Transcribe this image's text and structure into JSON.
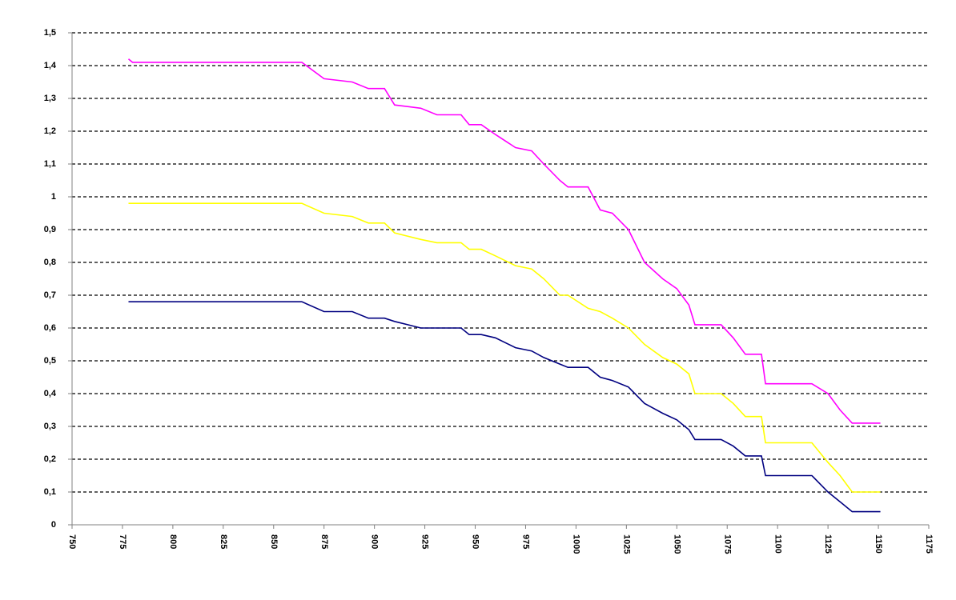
{
  "chart_data": {
    "type": "line",
    "x": [
      778,
      780,
      864,
      875,
      889,
      897,
      905,
      910,
      923,
      931,
      943,
      947,
      953,
      960,
      970,
      978,
      984,
      992,
      996,
      1006,
      1012,
      1018,
      1026,
      1034,
      1043,
      1050,
      1056,
      1059,
      1072,
      1078,
      1084,
      1092,
      1094,
      1105,
      1117,
      1125,
      1131,
      1137,
      1151
    ],
    "series": [
      {
        "color": "#ff00ff",
        "values": [
          1.42,
          1.41,
          1.41,
          1.36,
          1.35,
          1.33,
          1.33,
          1.28,
          1.27,
          1.25,
          1.25,
          1.22,
          1.22,
          1.19,
          1.15,
          1.14,
          1.1,
          1.05,
          1.03,
          1.03,
          0.96,
          0.95,
          0.9,
          0.8,
          0.75,
          0.72,
          0.67,
          0.61,
          0.61,
          0.57,
          0.52,
          0.52,
          0.43,
          0.43,
          0.43,
          0.4,
          0.35,
          0.31,
          0.31
        ]
      },
      {
        "color": "#ffff00",
        "values": [
          0.98,
          0.98,
          0.98,
          0.95,
          0.94,
          0.92,
          0.92,
          0.89,
          0.87,
          0.86,
          0.86,
          0.84,
          0.84,
          0.82,
          0.79,
          0.78,
          0.75,
          0.7,
          0.7,
          0.66,
          0.65,
          0.63,
          0.6,
          0.55,
          0.51,
          0.49,
          0.46,
          0.4,
          0.4,
          0.37,
          0.33,
          0.33,
          0.25,
          0.25,
          0.25,
          0.19,
          0.15,
          0.1,
          0.1
        ]
      },
      {
        "color": "#000080",
        "values": [
          0.68,
          0.68,
          0.68,
          0.65,
          0.65,
          0.63,
          0.63,
          0.62,
          0.6,
          0.6,
          0.6,
          0.58,
          0.58,
          0.57,
          0.54,
          0.53,
          0.51,
          0.49,
          0.48,
          0.48,
          0.45,
          0.44,
          0.42,
          0.37,
          0.34,
          0.32,
          0.29,
          0.26,
          0.26,
          0.24,
          0.21,
          0.21,
          0.15,
          0.15,
          0.15,
          0.1,
          0.07,
          0.04,
          0.04
        ]
      }
    ],
    "xlim": [
      750,
      1175
    ],
    "xticks": [
      750,
      775,
      800,
      825,
      850,
      875,
      900,
      925,
      950,
      975,
      1000,
      1025,
      1050,
      1075,
      1100,
      1125,
      1150,
      1175
    ],
    "ylim": [
      0,
      1.5
    ],
    "yticks": [
      0,
      {
        "value": 0.1,
        "label": "0,1"
      },
      {
        "value": 0.2,
        "label": "0,2"
      },
      {
        "value": 0.3,
        "label": "0,3"
      },
      {
        "value": 0.4,
        "label": "0,4"
      },
      {
        "value": 0.5,
        "label": "0,5"
      },
      {
        "value": 0.6,
        "label": "0,6"
      },
      {
        "value": 0.7,
        "label": "0,7"
      },
      {
        "value": 0.8,
        "label": "0,8"
      },
      {
        "value": 0.9,
        "label": "0,9"
      },
      1,
      {
        "value": 1.1,
        "label": "1,1"
      },
      {
        "value": 1.2,
        "label": "1,2"
      },
      {
        "value": 1.3,
        "label": "1,3"
      },
      {
        "value": 1.4,
        "label": "1,4"
      },
      {
        "value": 1.5,
        "label": "1,5"
      }
    ],
    "grid": true
  }
}
